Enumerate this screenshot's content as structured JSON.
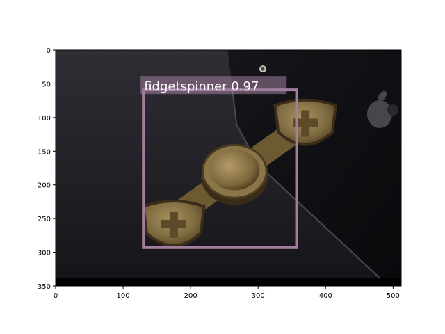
{
  "chart_data": {
    "type": "image-detection",
    "image": {
      "width": 512,
      "height": 350,
      "description_colors": {
        "background_top": "#2e2d33",
        "background_bottom": "#141318",
        "phone": "#0b0b0e",
        "spinner_brass": "#8a7548",
        "spinner_dark": "#3a2c18",
        "bottom_band": "#000000"
      }
    },
    "xlim": [
      0,
      512
    ],
    "ylim": [
      350,
      0
    ],
    "xticks": [
      0,
      100,
      200,
      300,
      400,
      500
    ],
    "yticks": [
      0,
      50,
      100,
      150,
      200,
      250,
      300,
      350
    ],
    "grid": false,
    "detections": [
      {
        "label": "fidgetspinner 0.97",
        "class": "fidgetspinner",
        "score": 0.97,
        "box": {
          "x1": 130,
          "y1": 59,
          "x2": 357,
          "y2": 293
        },
        "color": "#a07e9e"
      }
    ]
  }
}
